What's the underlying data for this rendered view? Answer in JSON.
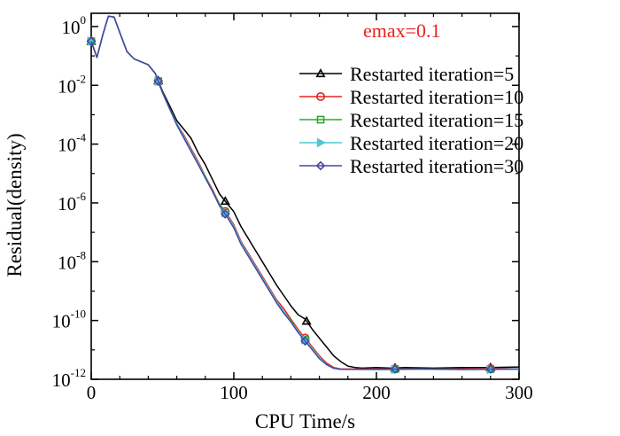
{
  "chart_data": {
    "type": "line",
    "title": "",
    "xlabel": "CPU Time/s",
    "ylabel": "Residual(density)",
    "annotation": "emax=0.1",
    "annotation_color": "#e8221e",
    "xlim": [
      0,
      300
    ],
    "ylim_log10": [
      -12,
      0.45
    ],
    "x_ticks": [
      {
        "value": 0,
        "label": "0"
      },
      {
        "value": 100,
        "label": "100"
      },
      {
        "value": 200,
        "label": "200"
      },
      {
        "value": 300,
        "label": "300"
      }
    ],
    "y_ticks": [
      {
        "exp": 0,
        "base": "10",
        "sup": "0"
      },
      {
        "exp": -2,
        "base": "10",
        "sup": "-2"
      },
      {
        "exp": -4,
        "base": "10",
        "sup": "-4"
      },
      {
        "exp": -6,
        "base": "10",
        "sup": "-6"
      },
      {
        "exp": -8,
        "base": "10",
        "sup": "-8"
      },
      {
        "exp": -10,
        "base": "10",
        "sup": "-10"
      },
      {
        "exp": -12,
        "base": "10",
        "sup": "-12"
      }
    ],
    "grid": false,
    "legend_position": "top-right",
    "series": [
      {
        "name": "Restarted iteration=5",
        "color": "#000000",
        "marker": "triangle",
        "points": [
          [
            0,
            -0.5
          ],
          [
            4,
            -1.05
          ],
          [
            8,
            -0.3
          ],
          [
            12,
            0.35
          ],
          [
            16,
            0.32
          ],
          [
            20,
            -0.2
          ],
          [
            25,
            -0.85
          ],
          [
            30,
            -1.1
          ],
          [
            35,
            -1.2
          ],
          [
            40,
            -1.3
          ],
          [
            45,
            -1.6
          ],
          [
            50,
            -2.2
          ],
          [
            55,
            -2.7
          ],
          [
            60,
            -3.2
          ],
          [
            65,
            -3.5
          ],
          [
            70,
            -3.8
          ],
          [
            75,
            -4.3
          ],
          [
            80,
            -4.7
          ],
          [
            85,
            -5.2
          ],
          [
            90,
            -5.7
          ],
          [
            95,
            -6.0
          ],
          [
            100,
            -6.3
          ],
          [
            105,
            -6.8
          ],
          [
            110,
            -7.2
          ],
          [
            115,
            -7.6
          ],
          [
            120,
            -8.0
          ],
          [
            125,
            -8.4
          ],
          [
            130,
            -8.8
          ],
          [
            135,
            -9.15
          ],
          [
            140,
            -9.5
          ],
          [
            145,
            -9.8
          ],
          [
            150,
            -9.95
          ],
          [
            155,
            -10.3
          ],
          [
            160,
            -10.6
          ],
          [
            165,
            -10.9
          ],
          [
            170,
            -11.2
          ],
          [
            175,
            -11.4
          ],
          [
            180,
            -11.55
          ],
          [
            185,
            -11.6
          ],
          [
            190,
            -11.62
          ],
          [
            200,
            -11.6
          ],
          [
            210,
            -11.62
          ],
          [
            220,
            -11.6
          ],
          [
            240,
            -11.62
          ],
          [
            260,
            -11.6
          ],
          [
            280,
            -11.6
          ],
          [
            300,
            -11.58
          ]
        ],
        "markers_x": [
          0,
          47,
          94,
          151,
          213,
          280
        ]
      },
      {
        "name": "Restarted iteration=10",
        "color": "#e8221e",
        "marker": "circle",
        "points": [
          [
            0,
            -0.5
          ],
          [
            4,
            -1.05
          ],
          [
            8,
            -0.3
          ],
          [
            12,
            0.35
          ],
          [
            16,
            0.32
          ],
          [
            20,
            -0.2
          ],
          [
            25,
            -0.85
          ],
          [
            30,
            -1.1
          ],
          [
            35,
            -1.2
          ],
          [
            40,
            -1.3
          ],
          [
            45,
            -1.6
          ],
          [
            50,
            -2.25
          ],
          [
            55,
            -2.8
          ],
          [
            60,
            -3.3
          ],
          [
            65,
            -3.7
          ],
          [
            70,
            -4.15
          ],
          [
            75,
            -4.6
          ],
          [
            80,
            -5.1
          ],
          [
            85,
            -5.55
          ],
          [
            90,
            -6.05
          ],
          [
            95,
            -6.35
          ],
          [
            100,
            -6.75
          ],
          [
            105,
            -7.3
          ],
          [
            110,
            -7.7
          ],
          [
            115,
            -8.1
          ],
          [
            120,
            -8.5
          ],
          [
            125,
            -8.9
          ],
          [
            130,
            -9.3
          ],
          [
            135,
            -9.6
          ],
          [
            140,
            -9.95
          ],
          [
            145,
            -10.3
          ],
          [
            150,
            -10.6
          ],
          [
            155,
            -10.9
          ],
          [
            160,
            -11.2
          ],
          [
            165,
            -11.45
          ],
          [
            170,
            -11.6
          ],
          [
            175,
            -11.65
          ],
          [
            180,
            -11.65
          ],
          [
            200,
            -11.65
          ],
          [
            220,
            -11.64
          ],
          [
            250,
            -11.65
          ],
          [
            280,
            -11.63
          ],
          [
            300,
            -11.65
          ]
        ],
        "markers_x": [
          0,
          47,
          94,
          150,
          213,
          280
        ]
      },
      {
        "name": "Restarted iteration=15",
        "color": "#2ea82e",
        "marker": "square",
        "points": [
          [
            0,
            -0.5
          ],
          [
            4,
            -1.05
          ],
          [
            8,
            -0.3
          ],
          [
            12,
            0.35
          ],
          [
            16,
            0.32
          ],
          [
            20,
            -0.2
          ],
          [
            25,
            -0.85
          ],
          [
            30,
            -1.1
          ],
          [
            35,
            -1.2
          ],
          [
            40,
            -1.3
          ],
          [
            45,
            -1.6
          ],
          [
            50,
            -2.25
          ],
          [
            55,
            -2.8
          ],
          [
            60,
            -3.3
          ],
          [
            65,
            -3.75
          ],
          [
            70,
            -4.2
          ],
          [
            75,
            -4.65
          ],
          [
            80,
            -5.1
          ],
          [
            85,
            -5.6
          ],
          [
            90,
            -6.05
          ],
          [
            95,
            -6.4
          ],
          [
            100,
            -6.8
          ],
          [
            105,
            -7.35
          ],
          [
            110,
            -7.75
          ],
          [
            115,
            -8.15
          ],
          [
            120,
            -8.55
          ],
          [
            125,
            -8.95
          ],
          [
            130,
            -9.35
          ],
          [
            135,
            -9.7
          ],
          [
            140,
            -10.0
          ],
          [
            145,
            -10.35
          ],
          [
            150,
            -10.65
          ],
          [
            155,
            -10.95
          ],
          [
            160,
            -11.25
          ],
          [
            165,
            -11.5
          ],
          [
            170,
            -11.62
          ],
          [
            175,
            -11.66
          ],
          [
            200,
            -11.66
          ],
          [
            230,
            -11.65
          ],
          [
            260,
            -11.66
          ],
          [
            300,
            -11.65
          ]
        ],
        "markers_x": [
          0,
          47,
          94,
          150,
          213,
          280
        ]
      },
      {
        "name": "Restarted iteration=20",
        "color": "#4ec8cf",
        "marker": "triangle-right",
        "points": [
          [
            0,
            -0.5
          ],
          [
            4,
            -1.05
          ],
          [
            8,
            -0.3
          ],
          [
            12,
            0.35
          ],
          [
            16,
            0.32
          ],
          [
            20,
            -0.2
          ],
          [
            25,
            -0.85
          ],
          [
            30,
            -1.1
          ],
          [
            35,
            -1.2
          ],
          [
            40,
            -1.3
          ],
          [
            45,
            -1.6
          ],
          [
            50,
            -2.25
          ],
          [
            55,
            -2.8
          ],
          [
            60,
            -3.3
          ],
          [
            65,
            -3.75
          ],
          [
            70,
            -4.2
          ],
          [
            75,
            -4.65
          ],
          [
            80,
            -5.15
          ],
          [
            85,
            -5.6
          ],
          [
            90,
            -6.1
          ],
          [
            95,
            -6.4
          ],
          [
            100,
            -6.8
          ],
          [
            105,
            -7.35
          ],
          [
            110,
            -7.75
          ],
          [
            115,
            -8.15
          ],
          [
            120,
            -8.55
          ],
          [
            125,
            -8.95
          ],
          [
            130,
            -9.35
          ],
          [
            135,
            -9.7
          ],
          [
            140,
            -10.05
          ],
          [
            145,
            -10.35
          ],
          [
            150,
            -10.65
          ],
          [
            155,
            -10.95
          ],
          [
            160,
            -11.25
          ],
          [
            165,
            -11.5
          ],
          [
            170,
            -11.63
          ],
          [
            175,
            -11.66
          ],
          [
            200,
            -11.67
          ],
          [
            230,
            -11.66
          ],
          [
            260,
            -11.67
          ],
          [
            300,
            -11.66
          ]
        ],
        "markers_x": [
          0,
          47,
          94,
          150,
          213,
          280
        ]
      },
      {
        "name": "Restarted iteration=30",
        "color": "#4646a8",
        "marker": "diamond",
        "points": [
          [
            0,
            -0.5
          ],
          [
            4,
            -1.05
          ],
          [
            8,
            -0.3
          ],
          [
            12,
            0.35
          ],
          [
            16,
            0.32
          ],
          [
            20,
            -0.2
          ],
          [
            25,
            -0.85
          ],
          [
            30,
            -1.1
          ],
          [
            35,
            -1.2
          ],
          [
            40,
            -1.3
          ],
          [
            45,
            -1.6
          ],
          [
            50,
            -2.25
          ],
          [
            55,
            -2.8
          ],
          [
            60,
            -3.35
          ],
          [
            65,
            -3.8
          ],
          [
            70,
            -4.25
          ],
          [
            75,
            -4.7
          ],
          [
            80,
            -5.15
          ],
          [
            85,
            -5.6
          ],
          [
            90,
            -6.1
          ],
          [
            95,
            -6.45
          ],
          [
            100,
            -6.85
          ],
          [
            105,
            -7.4
          ],
          [
            110,
            -7.8
          ],
          [
            115,
            -8.2
          ],
          [
            120,
            -8.6
          ],
          [
            125,
            -9.0
          ],
          [
            130,
            -9.4
          ],
          [
            135,
            -9.75
          ],
          [
            140,
            -10.05
          ],
          [
            145,
            -10.4
          ],
          [
            150,
            -10.7
          ],
          [
            155,
            -11.0
          ],
          [
            160,
            -11.3
          ],
          [
            165,
            -11.5
          ],
          [
            170,
            -11.62
          ],
          [
            175,
            -11.66
          ],
          [
            200,
            -11.66
          ],
          [
            230,
            -11.65
          ],
          [
            260,
            -11.66
          ],
          [
            300,
            -11.65
          ]
        ],
        "markers_x": [
          0,
          47,
          94,
          150,
          213,
          280
        ]
      }
    ]
  }
}
